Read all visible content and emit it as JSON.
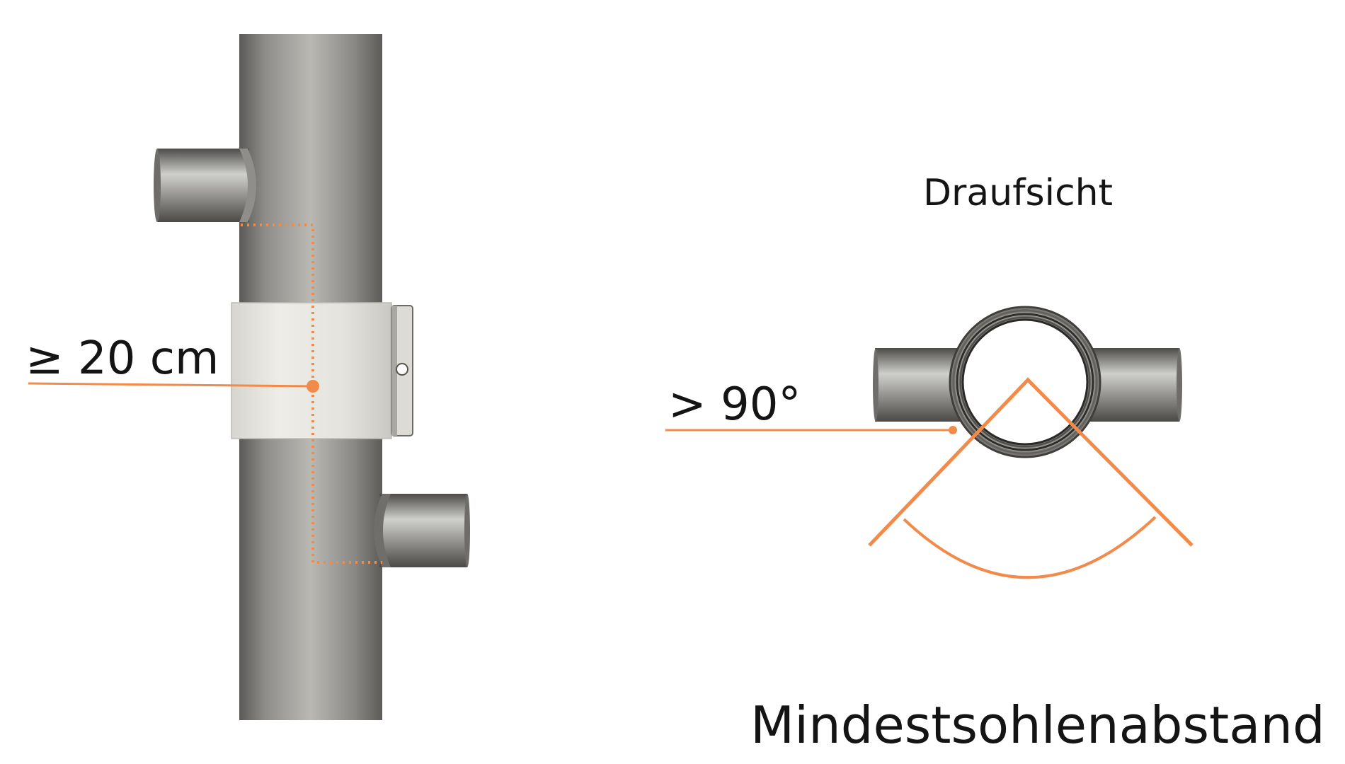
{
  "labels": {
    "spacing": "≥ 20 cm",
    "top_view": "Draufsicht",
    "angle": "> 90°",
    "caption": "Mindestsohlenabstand"
  },
  "colors": {
    "accent": "#f28a4a",
    "pipe_light": "#c9c9c5",
    "pipe_mid": "#8e8d89",
    "pipe_dark": "#4d4c49",
    "clamp": "#e8e7e1",
    "text": "#141414"
  }
}
